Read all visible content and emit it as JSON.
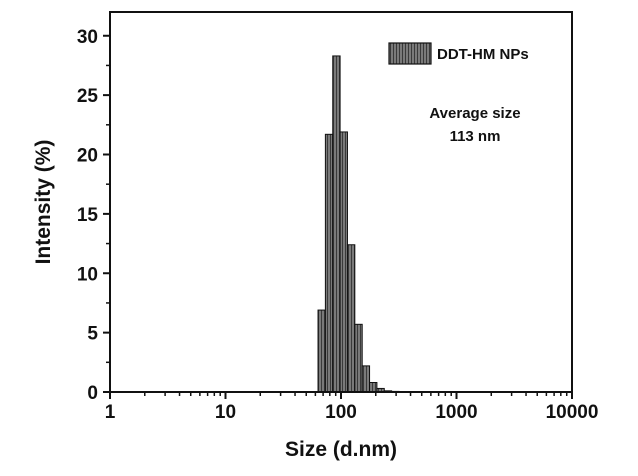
{
  "chart_data": {
    "type": "bar",
    "title": "",
    "xlabel": "Size (d.nm)",
    "ylabel": "Intensity (%)",
    "x_scale": "log",
    "xlim": [
      1,
      10000
    ],
    "ylim": [
      0,
      32
    ],
    "x_ticks": [
      1,
      10,
      100,
      1000,
      10000
    ],
    "x_tick_labels": [
      "1",
      "10",
      "100",
      "1000",
      "10000"
    ],
    "y_ticks": [
      0,
      5,
      10,
      15,
      20,
      25,
      30
    ],
    "y_tick_labels": [
      "0",
      "5",
      "10",
      "15",
      "20",
      "25",
      "30"
    ],
    "grid": false,
    "legend_position": "top-right",
    "bar_color": "#7a7a7a",
    "series": [
      {
        "name": "DDT-HM NPs",
        "x": [
          68.06,
          78.82,
          91.28,
          105.7,
          122.4,
          141.8,
          164.2,
          190.1,
          220.2,
          255.0,
          295.3,
          342.0
        ],
        "values": [
          6.9,
          21.7,
          28.3,
          21.9,
          12.4,
          5.7,
          2.2,
          0.8,
          0.3,
          0.1,
          0.05,
          0.0
        ]
      }
    ],
    "annotation": {
      "line1": "Average size",
      "line2": "113 nm"
    }
  }
}
